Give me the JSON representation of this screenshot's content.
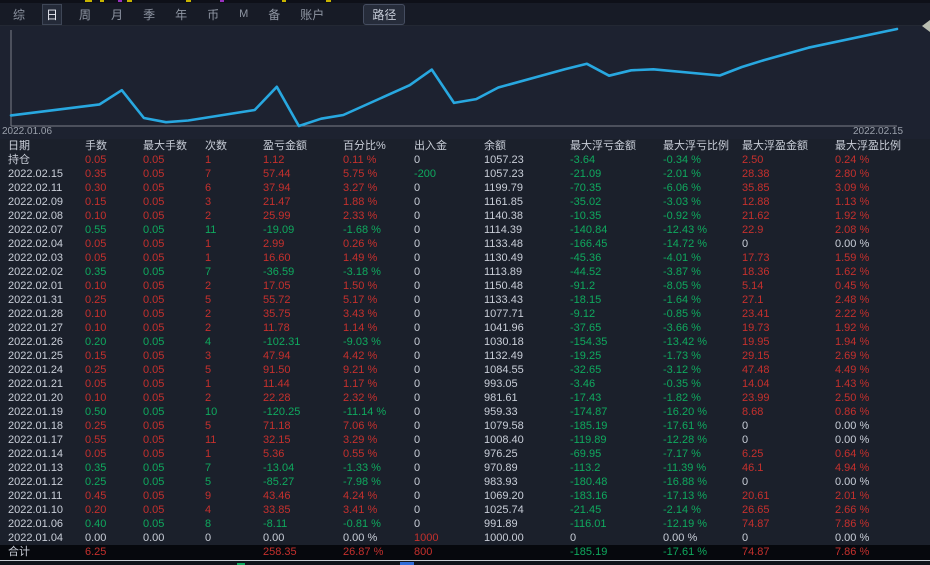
{
  "menu": {
    "items": [
      "综",
      "日",
      "周",
      "月",
      "季",
      "年",
      "币",
      "M",
      "备",
      "账户"
    ],
    "active_index": 1,
    "path_button": "路径"
  },
  "chart": {
    "start_label": "2022.01.06",
    "end_label": "2022.02.15",
    "line_color": "#28a8e0",
    "axis_color": "#7a7f88"
  },
  "chart_data": {
    "type": "line",
    "x": [
      "2022.01.06",
      "2022.01.10",
      "2022.01.11",
      "2022.01.12",
      "2022.01.13",
      "2022.01.14",
      "2022.01.17",
      "2022.01.18",
      "2022.01.19",
      "2022.01.20",
      "2022.01.21",
      "2022.01.24",
      "2022.01.25",
      "2022.01.26",
      "2022.01.27",
      "2022.01.28",
      "2022.01.31",
      "2022.02.01",
      "2022.02.02",
      "2022.02.03",
      "2022.02.04",
      "2022.02.07",
      "2022.02.08",
      "2022.02.09",
      "2022.02.11",
      "2022.02.15"
    ],
    "values": [
      -8.11,
      25.74,
      69.2,
      -16.07,
      -29.11,
      -23.75,
      8.4,
      79.58,
      -40.67,
      -18.39,
      -6.95,
      84.55,
      132.49,
      30.18,
      41.96,
      77.71,
      133.43,
      150.48,
      113.89,
      130.49,
      133.48,
      114.39,
      140.38,
      161.85,
      199.79,
      257.23
    ],
    "series_name": "cumulative_pnl",
    "xlabel": "",
    "ylabel": "",
    "ylim": [
      -40.67,
      257.23
    ],
    "grid": false,
    "legend": false
  },
  "table": {
    "headers": [
      "日期",
      "手数",
      "最大手数",
      "次数",
      "盈亏金额",
      "百分比%",
      "出入金",
      "余额",
      "最大浮亏金额",
      "最大浮亏比例",
      "最大浮盈金额",
      "最大浮盈比例"
    ],
    "col_keys": [
      "date",
      "lots",
      "max-lots",
      "count",
      "pnl",
      "pct",
      "cash-flow",
      "balance",
      "max-float-loss",
      "max-float-loss-pct",
      "max-float-profit",
      "max-float-profit-pct"
    ],
    "rows": [
      {
        "v": [
          "持仓",
          "0.05",
          "0.05",
          "1",
          "1.12",
          "0.11 %",
          "0",
          "1057.23",
          "-3.64",
          "-0.34 %",
          "2.50",
          "0.24 %"
        ],
        "k": "wrrrrrwwggrr"
      },
      {
        "v": [
          "2022.02.15",
          "0.35",
          "0.05",
          "7",
          "57.44",
          "5.75 %",
          "-200",
          "1057.23",
          "-21.09",
          "-2.01 %",
          "28.38",
          "2.80 %"
        ],
        "k": "wrrrrrgwggrr"
      },
      {
        "v": [
          "2022.02.11",
          "0.30",
          "0.05",
          "6",
          "37.94",
          "3.27 %",
          "0",
          "1199.79",
          "-70.35",
          "-6.06 %",
          "35.85",
          "3.09 %"
        ],
        "k": "wrrrrrwwggrr"
      },
      {
        "v": [
          "2022.02.09",
          "0.15",
          "0.05",
          "3",
          "21.47",
          "1.88 %",
          "0",
          "1161.85",
          "-35.02",
          "-3.03 %",
          "12.88",
          "1.13 %"
        ],
        "k": "wrrrrrwwggrr"
      },
      {
        "v": [
          "2022.02.08",
          "0.10",
          "0.05",
          "2",
          "25.99",
          "2.33 %",
          "0",
          "1140.38",
          "-10.35",
          "-0.92 %",
          "21.62",
          "1.92 %"
        ],
        "k": "wrrrrrwwggrr"
      },
      {
        "v": [
          "2022.02.07",
          "0.55",
          "0.05",
          "11",
          "-19.09",
          "-1.68 %",
          "0",
          "1114.39",
          "-140.84",
          "-12.43 %",
          "22.9",
          "2.08 %"
        ],
        "k": "wgggggwwggrr"
      },
      {
        "v": [
          "2022.02.04",
          "0.05",
          "0.05",
          "1",
          "2.99",
          "0.26 %",
          "0",
          "1133.48",
          "-166.45",
          "-14.72 %",
          "0",
          "0.00 %"
        ],
        "k": "wrrrrrwwggww"
      },
      {
        "v": [
          "2022.02.03",
          "0.05",
          "0.05",
          "1",
          "16.60",
          "1.49 %",
          "0",
          "1130.49",
          "-45.36",
          "-4.01 %",
          "17.73",
          "1.59 %"
        ],
        "k": "wrrrrrwwggrr"
      },
      {
        "v": [
          "2022.02.02",
          "0.35",
          "0.05",
          "7",
          "-36.59",
          "-3.18 %",
          "0",
          "1113.89",
          "-44.52",
          "-3.87 %",
          "18.36",
          "1.62 %"
        ],
        "k": "wgggggwwggrr"
      },
      {
        "v": [
          "2022.02.01",
          "0.10",
          "0.05",
          "2",
          "17.05",
          "1.50 %",
          "0",
          "1150.48",
          "-91.2",
          "-8.05 %",
          "5.14",
          "0.45 %"
        ],
        "k": "wrrrrrwwggrr"
      },
      {
        "v": [
          "2022.01.31",
          "0.25",
          "0.05",
          "5",
          "55.72",
          "5.17 %",
          "0",
          "1133.43",
          "-18.15",
          "-1.64 %",
          "27.1",
          "2.48 %"
        ],
        "k": "wrrrrrwwggrr"
      },
      {
        "v": [
          "2022.01.28",
          "0.10",
          "0.05",
          "2",
          "35.75",
          "3.43 %",
          "0",
          "1077.71",
          "-9.12",
          "-0.85 %",
          "23.41",
          "2.22 %"
        ],
        "k": "wrrrrrwwggrr"
      },
      {
        "v": [
          "2022.01.27",
          "0.10",
          "0.05",
          "2",
          "11.78",
          "1.14 %",
          "0",
          "1041.96",
          "-37.65",
          "-3.66 %",
          "19.73",
          "1.92 %"
        ],
        "k": "wrrrrrwwggrr"
      },
      {
        "v": [
          "2022.01.26",
          "0.20",
          "0.05",
          "4",
          "-102.31",
          "-9.03 %",
          "0",
          "1030.18",
          "-154.35",
          "-13.42 %",
          "19.95",
          "1.94 %"
        ],
        "k": "wgggggwwggrr"
      },
      {
        "v": [
          "2022.01.25",
          "0.15",
          "0.05",
          "3",
          "47.94",
          "4.42 %",
          "0",
          "1132.49",
          "-19.25",
          "-1.73 %",
          "29.15",
          "2.69 %"
        ],
        "k": "wrrrrrwwggrr"
      },
      {
        "v": [
          "2022.01.24",
          "0.25",
          "0.05",
          "5",
          "91.50",
          "9.21 %",
          "0",
          "1084.55",
          "-32.65",
          "-3.12 %",
          "47.48",
          "4.49 %"
        ],
        "k": "wrrrrrwwggrr"
      },
      {
        "v": [
          "2022.01.21",
          "0.05",
          "0.05",
          "1",
          "11.44",
          "1.17 %",
          "0",
          "993.05",
          "-3.46",
          "-0.35 %",
          "14.04",
          "1.43 %"
        ],
        "k": "wrrrrrwwggrr"
      },
      {
        "v": [
          "2022.01.20",
          "0.10",
          "0.05",
          "2",
          "22.28",
          "2.32 %",
          "0",
          "981.61",
          "-17.43",
          "-1.82 %",
          "23.99",
          "2.50 %"
        ],
        "k": "wrrrrrwwggrr"
      },
      {
        "v": [
          "2022.01.19",
          "0.50",
          "0.05",
          "10",
          "-120.25",
          "-11.14 %",
          "0",
          "959.33",
          "-174.87",
          "-16.20 %",
          "8.68",
          "0.86 %"
        ],
        "k": "wgggggwwggrr"
      },
      {
        "v": [
          "2022.01.18",
          "0.25",
          "0.05",
          "5",
          "71.18",
          "7.06 %",
          "0",
          "1079.58",
          "-185.19",
          "-17.61 %",
          "0",
          "0.00 %"
        ],
        "k": "wrrrrrwwggww"
      },
      {
        "v": [
          "2022.01.17",
          "0.55",
          "0.05",
          "11",
          "32.15",
          "3.29 %",
          "0",
          "1008.40",
          "-119.89",
          "-12.28 %",
          "0",
          "0.00 %"
        ],
        "k": "wrrrrrwwggww"
      },
      {
        "v": [
          "2022.01.14",
          "0.05",
          "0.05",
          "1",
          "5.36",
          "0.55 %",
          "0",
          "976.25",
          "-69.95",
          "-7.17 %",
          "6.25",
          "0.64 %"
        ],
        "k": "wrrrrrwwggrr"
      },
      {
        "v": [
          "2022.01.13",
          "0.35",
          "0.05",
          "7",
          "-13.04",
          "-1.33 %",
          "0",
          "970.89",
          "-113.2",
          "-11.39 %",
          "46.1",
          "4.94 %"
        ],
        "k": "wgggggwwggrr"
      },
      {
        "v": [
          "2022.01.12",
          "0.25",
          "0.05",
          "5",
          "-85.27",
          "-7.98 %",
          "0",
          "983.93",
          "-180.48",
          "-16.88 %",
          "0",
          "0.00 %"
        ],
        "k": "wgggggwwggww"
      },
      {
        "v": [
          "2022.01.11",
          "0.45",
          "0.05",
          "9",
          "43.46",
          "4.24 %",
          "0",
          "1069.20",
          "-183.16",
          "-17.13 %",
          "20.61",
          "2.01 %"
        ],
        "k": "wrrrrrwwggrr"
      },
      {
        "v": [
          "2022.01.10",
          "0.20",
          "0.05",
          "4",
          "33.85",
          "3.41 %",
          "0",
          "1025.74",
          "-21.45",
          "-2.14 %",
          "26.65",
          "2.66 %"
        ],
        "k": "wrrrrrwwggrr"
      },
      {
        "v": [
          "2022.01.06",
          "0.40",
          "0.05",
          "8",
          "-8.11",
          "-0.81 %",
          "0",
          "991.89",
          "-116.01",
          "-12.19 %",
          "74.87",
          "7.86 %"
        ],
        "k": "wgggggwwggrr"
      },
      {
        "v": [
          "2022.01.04",
          "0.00",
          "0.00",
          "0",
          "0.00",
          "0.00 %",
          "1000",
          "1000.00",
          "0",
          "0.00 %",
          "0",
          "0.00 %"
        ],
        "k": "wwwwwwrwwwww"
      }
    ],
    "total": {
      "v": [
        "合计",
        "6.25",
        "",
        "",
        "258.35",
        "26.87 %",
        "800",
        "",
        "-185.19",
        "-17.61 %",
        "74.87",
        "7.86 %"
      ],
      "k": "wrwwrrrwggrr"
    }
  },
  "colors": {
    "profit_red": "#c5302d",
    "loss_green": "#0fa95e",
    "neutral": "#c9ced8",
    "line_blue": "#28a8e0"
  }
}
